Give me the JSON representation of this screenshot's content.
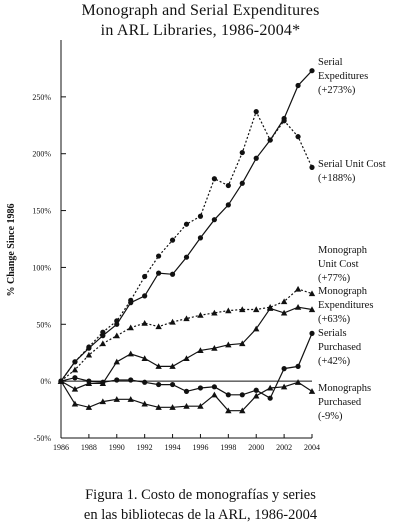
{
  "chart_title": [
    "Monograph and Serial Expenditures",
    "in ARL Libraries, 1986-2004*"
  ],
  "caption": [
    "Figura 1. Costo de monografías y series",
    "en las bibliotecas de la ARL, 1986-2004"
  ],
  "chart_data": {
    "type": "line",
    "title": "Monograph and Serial Expenditures in ARL Libraries, 1986-2004*",
    "xlabel": "",
    "ylabel": "% Change Since 1986",
    "xlim": [
      1986,
      2004
    ],
    "ylim": [
      -50,
      300
    ],
    "x_ticks": [
      "1986",
      "1988",
      "1990",
      "1992",
      "1994",
      "1996",
      "1998",
      "2000",
      "2002",
      "2004"
    ],
    "y_ticks": [
      "-50%",
      "0%",
      "50%",
      "100%",
      "150%",
      "200%",
      "250%"
    ],
    "grid": false,
    "x": [
      1986,
      1987,
      1988,
      1989,
      1990,
      1991,
      1992,
      1993,
      1994,
      1995,
      1996,
      1997,
      1998,
      1999,
      2000,
      2001,
      2002,
      2003,
      2004
    ],
    "series": [
      {
        "label": [
          "Serial",
          "Expeditures",
          "(+273%)"
        ],
        "style": "solid",
        "marker": "circle",
        "values": [
          0,
          17,
          29,
          40,
          50,
          69,
          75,
          95,
          94,
          109,
          126,
          142,
          155,
          174,
          196,
          212,
          231,
          260,
          273
        ]
      },
      {
        "label": [
          "Serial Unit Cost",
          "(+188%)"
        ],
        "style": "dotted",
        "marker": "circle",
        "values": [
          0,
          17,
          30,
          43,
          53,
          71,
          92,
          110,
          124,
          138,
          145,
          178,
          172,
          201,
          237,
          212,
          229,
          215,
          188
        ]
      },
      {
        "label": [
          "Monograph",
          "Unit Cost",
          "(+77%)"
        ],
        "style": "dotted",
        "marker": "triangle",
        "values": [
          0,
          10,
          23,
          33,
          40,
          47,
          51,
          48,
          52,
          55,
          58,
          60,
          62,
          63,
          63,
          65,
          70,
          81,
          77
        ]
      },
      {
        "label": [
          "Monograph",
          "Expenditures",
          "(+63%)"
        ],
        "style": "solid",
        "marker": "triangle",
        "values": [
          0,
          -7,
          -2,
          -2,
          17,
          24,
          20,
          13,
          13,
          20,
          27,
          29,
          32,
          33,
          46,
          64,
          60,
          65,
          63
        ]
      },
      {
        "label": [
          "Serials",
          "Purchased",
          "(+42%)"
        ],
        "style": "solid",
        "marker": "circle",
        "values": [
          0,
          3,
          0,
          -1,
          1,
          1,
          -1,
          -3,
          -3,
          -9,
          -6,
          -5,
          -12,
          -12,
          -8,
          -15,
          11,
          13,
          42
        ]
      },
      {
        "label": [
          "Monographs",
          "Purchased",
          "(-9%)"
        ],
        "style": "solid",
        "marker": "triangle",
        "values": [
          0,
          -20,
          -23,
          -18,
          -16,
          -16,
          -20,
          -23,
          -23,
          -22,
          -22,
          -12,
          -26,
          -26,
          -13,
          -6,
          -5,
          -1,
          -9
        ]
      }
    ]
  }
}
